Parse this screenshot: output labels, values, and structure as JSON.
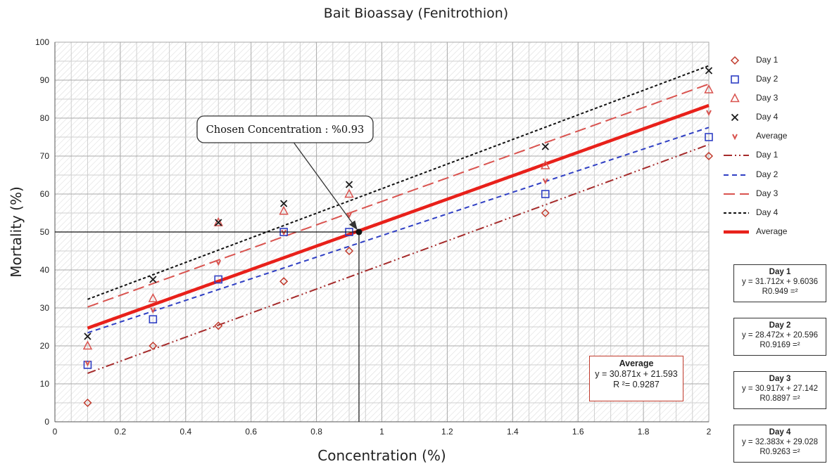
{
  "chart_data": {
    "type": "scatter",
    "title": "Bait Bioassay (Fenitrothion)",
    "xlabel": "Concentration (%)",
    "ylabel": "Mortality (%)",
    "xlim": [
      0,
      2
    ],
    "ylim": [
      0,
      100
    ],
    "xticks": [
      "0",
      "0.2",
      "0.4",
      "0.6",
      "0.8",
      "1",
      "1.2",
      "1.4",
      "1.6",
      "1.8",
      "2"
    ],
    "yticks": [
      "0",
      "10",
      "20",
      "30",
      "40",
      "50",
      "60",
      "70",
      "80",
      "90",
      "100"
    ],
    "grid": true,
    "legend_position": "right",
    "series": [
      {
        "name": "Day 1",
        "marker": "diamond",
        "color": "#c0392b",
        "x": [
          0.1,
          0.3,
          0.5,
          0.7,
          0.9,
          1.5,
          2.0
        ],
        "y": [
          5,
          20,
          25.3,
          37,
          45,
          55,
          70
        ]
      },
      {
        "name": "Day 2",
        "marker": "square",
        "color": "#2f3fc4",
        "x": [
          0.1,
          0.3,
          0.5,
          0.7,
          0.9,
          1.5,
          2.0
        ],
        "y": [
          15,
          27,
          37.5,
          50,
          50,
          60,
          75
        ]
      },
      {
        "name": "Day 3",
        "marker": "triangle",
        "color": "#d9534f",
        "x": [
          0.1,
          0.3,
          0.5,
          0.7,
          0.9,
          1.5,
          2.0
        ],
        "y": [
          20,
          32.5,
          52.5,
          55.5,
          60,
          67.5,
          87.5
        ]
      },
      {
        "name": "Day 4",
        "marker": "x",
        "color": "#1a1a1a",
        "x": [
          0.1,
          0.3,
          0.5,
          0.7,
          0.9,
          1.5,
          2.0
        ],
        "y": [
          22.5,
          37.5,
          52.5,
          57.5,
          62.5,
          72.5,
          92.5
        ]
      },
      {
        "name": "Average",
        "marker": "v",
        "color": "#d9534f",
        "x": [
          0.1,
          0.3,
          0.5,
          0.7,
          0.9,
          1.5,
          2.0
        ],
        "y": [
          15.5,
          29.5,
          42,
          50,
          54.5,
          63.5,
          81.5
        ]
      }
    ],
    "trendlines": [
      {
        "name": "Day 1",
        "slope": 31.712,
        "intercept": 9.6036,
        "color": "#a52a2a",
        "dash": "12 4 2 4 2 4"
      },
      {
        "name": "Day 2",
        "slope": 28.472,
        "intercept": 20.596,
        "color": "#2f3fc4",
        "dash": "7 5"
      },
      {
        "name": "Day 3",
        "slope": 30.917,
        "intercept": 27.142,
        "color": "#d9534f",
        "dash": "16 7"
      },
      {
        "name": "Day 4",
        "slope": 32.383,
        "intercept": 29.028,
        "color": "#111111",
        "dash": "4 3"
      },
      {
        "name": "Average",
        "slope": 30.871,
        "intercept": 21.593,
        "color": "#e8201a",
        "dash": ""
      }
    ],
    "annotation": {
      "text": "Chosen Concentration : %0.93",
      "x": 0.93,
      "y": 50
    },
    "equations": [
      {
        "name": "Day 1",
        "eq": "y = 31.712x + 9.6036",
        "r2": "R0.949 =²"
      },
      {
        "name": "Day 2",
        "eq": "y = 28.472x + 20.596",
        "r2": "R0.9169 =²"
      },
      {
        "name": "Day 3",
        "eq": "y = 30.917x + 27.142",
        "r2": "R0.8897 =²"
      },
      {
        "name": "Day 4",
        "eq": "y = 32.383x + 29.028",
        "r2": "R0.9263 =²"
      }
    ],
    "average_equation": {
      "name": "Average",
      "eq": "y = 30.871x + 21.593",
      "r2": "R ²= 0.9287"
    }
  }
}
